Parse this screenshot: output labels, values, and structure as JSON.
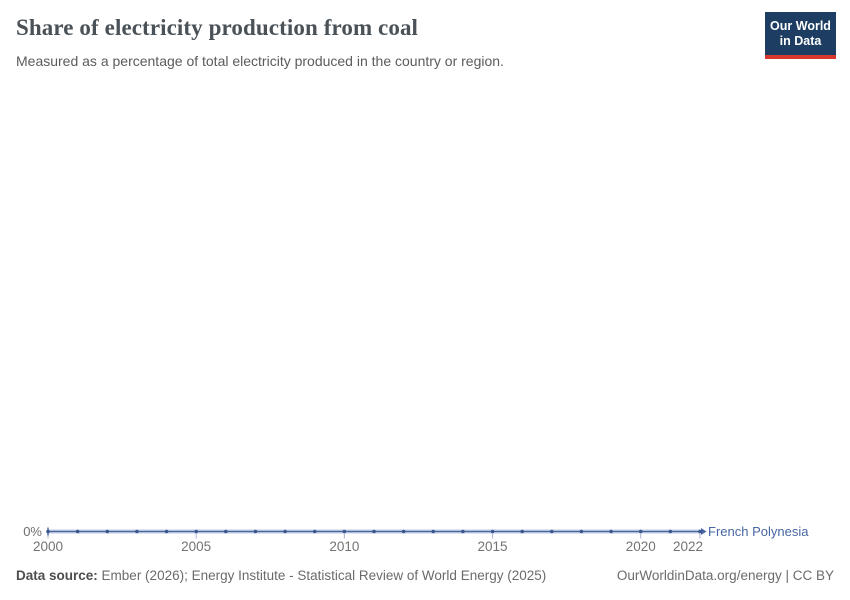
{
  "chart_data": {
    "type": "line",
    "title": "Share of electricity production from coal",
    "subtitle": "Measured as a percentage of total electricity produced in the country or region.",
    "unit": "%",
    "x": [
      2000,
      2001,
      2002,
      2003,
      2004,
      2005,
      2006,
      2007,
      2008,
      2009,
      2010,
      2011,
      2012,
      2013,
      2014,
      2015,
      2016,
      2017,
      2018,
      2019,
      2020,
      2021,
      2022
    ],
    "series": [
      {
        "name": "French Polynesia",
        "color": "#4766a3",
        "dot_color": "#3a578f",
        "halo_color": "#ccd5e6",
        "values": [
          0,
          0,
          0,
          0,
          0,
          0,
          0,
          0,
          0,
          0,
          0,
          0,
          0,
          0,
          0,
          0,
          0,
          0,
          0,
          0,
          0,
          0,
          0
        ]
      }
    ],
    "x_ticks": [
      2000,
      2005,
      2010,
      2015,
      2020,
      2022
    ],
    "y_ticks": [
      "0%"
    ],
    "xlim": [
      2000,
      2022
    ],
    "ylim": [
      0,
      100
    ],
    "grid": false,
    "legend": "line-end-label"
  },
  "logo": {
    "line1": "Our World",
    "line2": "in Data",
    "bg_color": "#1d3d63",
    "accent_color": "#d7382d"
  },
  "footer": {
    "source_label": "Data source:",
    "source_text": "Ember (2026); Energy Institute - Statistical Review of World Energy (2025)",
    "license": "OurWorldinData.org/energy | CC BY"
  }
}
